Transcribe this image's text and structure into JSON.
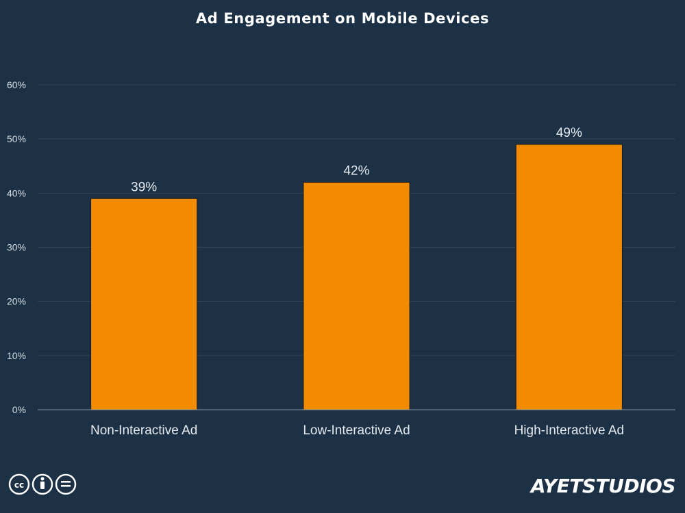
{
  "chart_data": {
    "type": "bar",
    "title": "Ad Engagement on Mobile Devices",
    "categories": [
      "Non-Interactive Ad",
      "Low-Interactive Ad",
      "High-Interactive Ad"
    ],
    "values": [
      39,
      42,
      49
    ],
    "data_labels": [
      "39%",
      "42%",
      "49%"
    ],
    "ylim": [
      0,
      60
    ],
    "yticks": [
      0,
      10,
      20,
      30,
      40,
      50,
      60
    ],
    "ytick_labels": [
      "0%",
      "10%",
      "20%",
      "30%",
      "40%",
      "50%",
      "60%"
    ],
    "xlabel": "",
    "ylabel": "",
    "grid": true,
    "legend": "none",
    "bar_color": "#f28b00",
    "background_color": "#1c3146"
  },
  "footer": {
    "license_icons": [
      "cc-icon",
      "by-attribution-icon",
      "no-derivatives-icon"
    ],
    "brand": "AYETSTUDIOS"
  }
}
